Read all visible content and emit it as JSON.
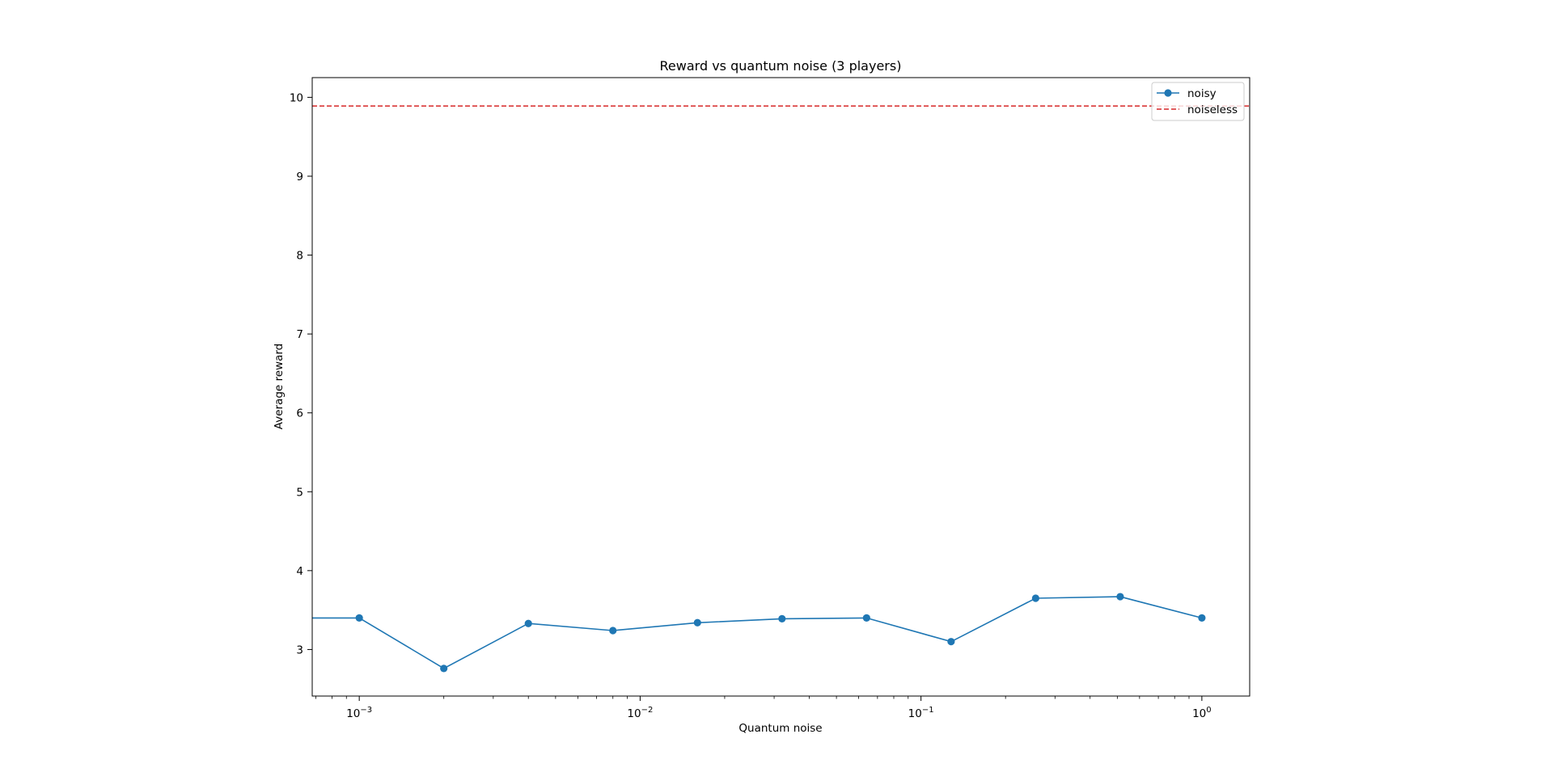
{
  "chart_data": {
    "type": "line",
    "title": "Reward vs quantum noise (3 players)",
    "xlabel": "Quantum noise",
    "ylabel": "Average reward",
    "x_scale": "log",
    "xlim": [
      0.00068,
      1.48
    ],
    "ylim": [
      2.41,
      10.25
    ],
    "x_ticks": [
      {
        "value": 0.001,
        "base": "10",
        "exp": "−3"
      },
      {
        "value": 0.01,
        "base": "10",
        "exp": "−2"
      },
      {
        "value": 0.1,
        "base": "10",
        "exp": "−1"
      },
      {
        "value": 1,
        "base": "10",
        "exp": "0"
      }
    ],
    "y_ticks": [
      "3",
      "4",
      "5",
      "6",
      "7",
      "8",
      "9",
      "10"
    ],
    "grid": false,
    "legend": {
      "position": "top-right"
    },
    "series": [
      {
        "name": "noisy",
        "style": "line-marker",
        "color": "#1f77b4",
        "x": [
          0.0005,
          0.001,
          0.002,
          0.004,
          0.008,
          0.016,
          0.032,
          0.064,
          0.128,
          0.256,
          0.512,
          1.0
        ],
        "values": [
          3.4,
          3.4,
          2.76,
          3.33,
          3.24,
          3.34,
          3.39,
          3.4,
          3.1,
          3.65,
          3.67,
          3.4
        ]
      },
      {
        "name": "noiseless",
        "style": "dashed-hline",
        "color": "#d62728",
        "value": 9.89
      }
    ]
  }
}
